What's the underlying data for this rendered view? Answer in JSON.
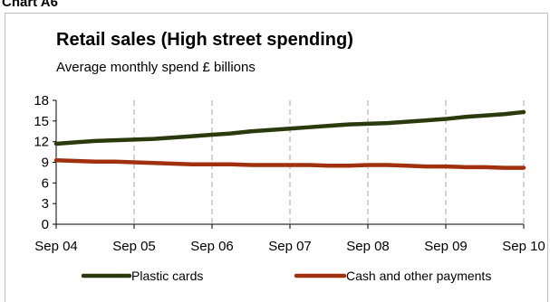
{
  "top_label": "Chart A6",
  "chart_data": {
    "type": "line",
    "title": "Retail sales (High street spending)",
    "subtitle": "Average monthly spend £ billions",
    "x_ticks": [
      "Sep 04",
      "Sep 05",
      "Sep 06",
      "Sep 07",
      "Sep 08",
      "Sep 09",
      "Sep 10"
    ],
    "y_ticks": [
      0,
      3,
      6,
      9,
      12,
      15,
      18
    ],
    "ylim": [
      0,
      18
    ],
    "grid": "vertical dashed at each x tick",
    "legend_position": "bottom",
    "x": [
      "Sep 04",
      "Dec 04",
      "Mar 05",
      "Jun 05",
      "Sep 05",
      "Dec 05",
      "Mar 06",
      "Jun 06",
      "Sep 06",
      "Dec 06",
      "Mar 07",
      "Jun 07",
      "Sep 07",
      "Dec 07",
      "Mar 08",
      "Jun 08",
      "Sep 08",
      "Dec 08",
      "Mar 09",
      "Jun 09",
      "Sep 09",
      "Dec 09",
      "Mar 10",
      "Jun 10",
      "Sep 10"
    ],
    "series": [
      {
        "name": "Plastic cards",
        "color": "#2b3a0c",
        "values": [
          11.7,
          11.9,
          12.1,
          12.2,
          12.3,
          12.4,
          12.6,
          12.8,
          13.0,
          13.2,
          13.5,
          13.7,
          13.9,
          14.1,
          14.3,
          14.5,
          14.6,
          14.7,
          14.9,
          15.1,
          15.3,
          15.6,
          15.8,
          16.0,
          16.3
        ]
      },
      {
        "name": "Cash and other payments",
        "color": "#a0300e",
        "values": [
          9.3,
          9.2,
          9.1,
          9.1,
          9.0,
          8.9,
          8.8,
          8.7,
          8.7,
          8.7,
          8.6,
          8.6,
          8.6,
          8.6,
          8.5,
          8.5,
          8.6,
          8.6,
          8.5,
          8.4,
          8.4,
          8.3,
          8.3,
          8.2,
          8.2
        ]
      }
    ]
  }
}
